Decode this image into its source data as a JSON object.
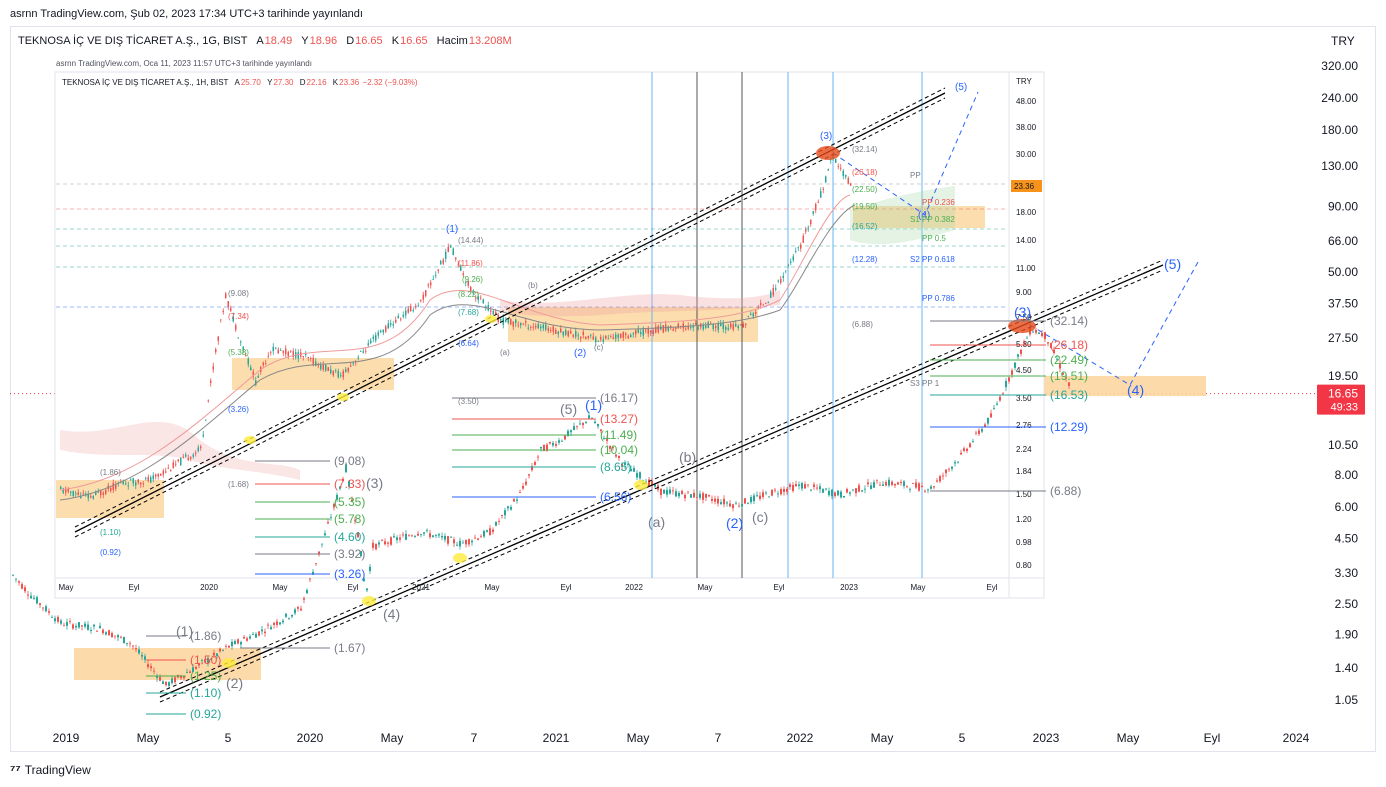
{
  "header": {
    "published": "asrnn TradingView.com, Şub 02, 2023 17:34 UTC+3 tarihinde yayınlandı"
  },
  "legend": {
    "symbol": "TEKNOSA İÇ VE DIŞ TİCARET A.Ş., 1G, BIST",
    "open_label": "A",
    "open": "18.49",
    "high_label": "Y",
    "high": "18.96",
    "low_label": "D",
    "low": "16.65",
    "close_label": "K",
    "close": "16.65",
    "volume_label": "Hacim",
    "volume": "13.208M"
  },
  "currency": "TRY",
  "inset": {
    "published": "asrnn TradingView.com, Oca 11, 2023 11:57 UTC+3 tarihinde yayınlandı",
    "symbol": "TEKNOSA İÇ VE DIŞ TİCARET A.Ş., 1H, BIST",
    "open_label": "A",
    "open": "25.70",
    "high_label": "Y",
    "high": "27.30",
    "low_label": "D",
    "low": "22.16",
    "close_label": "K",
    "close": "23.36",
    "change": "−2.32 (−9.03%)",
    "currency": "TRY",
    "price_ticks": [
      "48.00",
      "38.00",
      "30.00",
      "23.36",
      "18.00",
      "14.00",
      "11.00",
      "9.00",
      "7.50",
      "5.80",
      "4.50",
      "3.50",
      "2.76",
      "2.24",
      "1.84",
      "1.50",
      "1.20",
      "0.98",
      "0.80"
    ],
    "price_tag": "23.36",
    "time_ticks": [
      "May",
      "Eyl",
      "2020",
      "May",
      "Eyl",
      "2021",
      "May",
      "Eyl",
      "2022",
      "May",
      "Eyl",
      "2023",
      "May",
      "Eyl"
    ]
  },
  "chart_data": {
    "type": "candlestick",
    "scale": "log",
    "price_ticks": [
      "320.00",
      "240.00",
      "180.00",
      "130.00",
      "90.00",
      "66.00",
      "50.00",
      "37.50",
      "27.50",
      "19.50",
      "16.65",
      "10.50",
      "8.00",
      "6.00",
      "4.50",
      "3.30",
      "2.50",
      "1.90",
      "1.40",
      "1.05"
    ],
    "time_ticks": [
      "2019",
      "May",
      "5",
      "2020",
      "May",
      "7",
      "2021",
      "May",
      "7",
      "2022",
      "May",
      "5",
      "2023",
      "May",
      "Eyl",
      "2024"
    ],
    "last_price": "16.65",
    "countdown": "49:33",
    "fib_levels": {
      "first": [
        "(1.86)",
        "(1.50)",
        "(1.25)",
        "(1.10)",
        "(0.92)",
        "(1.67)"
      ],
      "second": [
        "(9.08)",
        "(7.33)",
        "(5.35)",
        "(5.78)",
        "(4.60)",
        "(3.26)",
        "(3.92)"
      ],
      "third": [
        "(16.17)",
        "(13.27)",
        "(11.49)",
        "(10.04)",
        "(8.65)",
        "(6.56)"
      ],
      "fourth": [
        "(32.14)",
        "(26.18)",
        "(22.49)",
        "(19.51)",
        "(16.53)",
        "(12.29)",
        "(6.88)"
      ]
    },
    "wave_labels": {
      "blue": [
        "(1)",
        "(2)",
        "(3)",
        "(4)",
        "(5)"
      ],
      "gray": [
        "(1)",
        "(2)",
        "(3)",
        "(4)",
        "(5)",
        "(a)",
        "(b)",
        "(c)"
      ]
    },
    "inset_labels": [
      "(1.86)",
      "(1.10)",
      "(0.92)",
      "(1.68)",
      "(9.08)",
      "(7.34)",
      "(5.38)",
      "(3.26)",
      "(3.50)",
      "(14.44)",
      "(11.86)",
      "(9.26)",
      "(8.22)",
      "(7.68)",
      "(6.64)",
      "(32.14)",
      "(26.18)",
      "(22.50)",
      "(19.50)",
      "(16.52)",
      "(12.28)",
      "(6.88)",
      "(1)",
      "(2)",
      "(3)",
      "(4)",
      "(5)",
      "(a)",
      "(b)",
      "(c)",
      "PP",
      "PP 0.236",
      "S1 PP 0.382",
      "PP 0.5",
      "S2 PP 0.618",
      "PP 0.786",
      "S3 PP 1"
    ]
  },
  "footer": {
    "brand": "TradingView"
  },
  "colors": {
    "up": "#26a69a",
    "down": "#ef5350",
    "fib_blue": "#2962ff",
    "zone": "#fbd49a",
    "price_tag": "#f23645",
    "inset_tag": "#f7931a",
    "vline_blue": "#64b5f6"
  }
}
